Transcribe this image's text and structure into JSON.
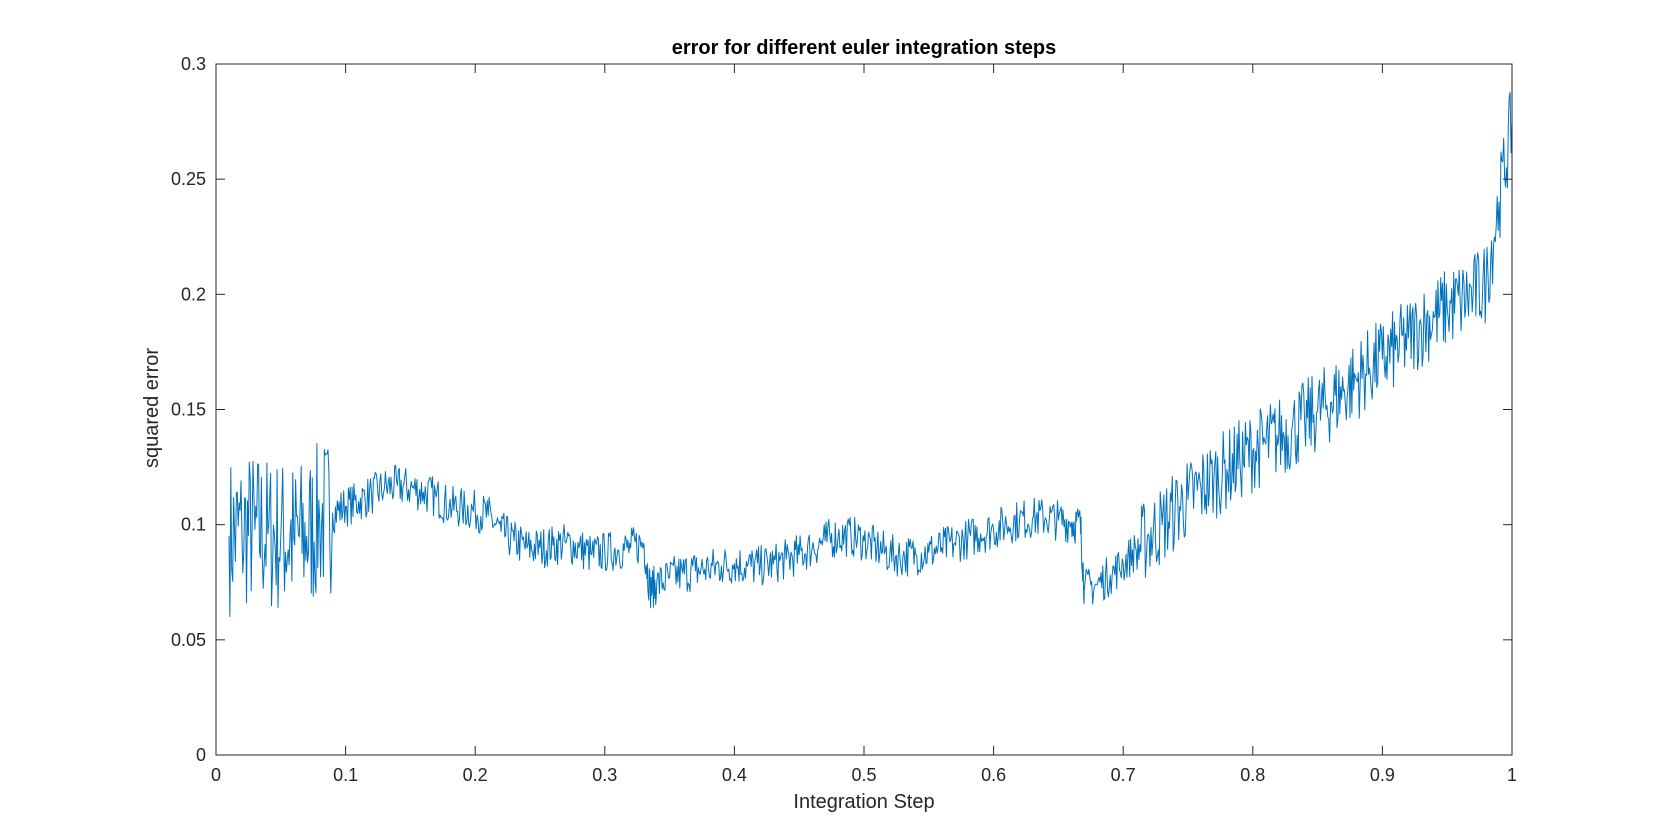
{
  "chart_data": {
    "type": "line",
    "title": "error for different euler integration steps",
    "xlabel": "Integration Step",
    "ylabel": "squared error",
    "xlim": [
      0,
      1
    ],
    "ylim": [
      0,
      0.3
    ],
    "x_ticks": [
      0,
      0.1,
      0.2,
      0.3,
      0.4,
      0.5,
      0.6,
      0.7,
      0.8,
      0.9,
      1
    ],
    "x_tick_labels": [
      "0",
      "0.1",
      "0.2",
      "0.3",
      "0.4",
      "0.5",
      "0.6",
      "0.7",
      "0.8",
      "0.9",
      "1"
    ],
    "y_ticks": [
      0,
      0.05,
      0.1,
      0.15,
      0.2,
      0.25,
      0.3
    ],
    "y_tick_labels": [
      "0",
      "0.05",
      "0.1",
      "0.15",
      "0.2",
      "0.25",
      "0.3"
    ],
    "grid": false,
    "line_color": "#0072BD",
    "axis_color": "#262626",
    "series": [
      {
        "x": [
          0.01,
          0.02,
          0.03,
          0.04,
          0.05,
          0.06,
          0.07,
          0.08,
          0.09,
          0.1,
          0.11,
          0.12,
          0.13,
          0.14,
          0.15,
          0.16,
          0.17,
          0.18,
          0.19,
          0.2,
          0.21,
          0.22,
          0.23,
          0.24,
          0.25,
          0.26,
          0.27,
          0.28,
          0.29,
          0.3,
          0.31,
          0.32,
          0.33,
          0.335,
          0.34,
          0.35,
          0.36,
          0.37,
          0.38,
          0.39,
          0.4,
          0.41,
          0.42,
          0.43,
          0.44,
          0.45,
          0.46,
          0.47,
          0.48,
          0.49,
          0.5,
          0.51,
          0.52,
          0.53,
          0.54,
          0.55,
          0.56,
          0.57,
          0.58,
          0.59,
          0.6,
          0.61,
          0.62,
          0.63,
          0.64,
          0.65,
          0.66,
          0.667,
          0.67,
          0.68,
          0.69,
          0.7,
          0.71,
          0.72,
          0.73,
          0.74,
          0.75,
          0.76,
          0.77,
          0.78,
          0.79,
          0.8,
          0.81,
          0.82,
          0.83,
          0.84,
          0.85,
          0.86,
          0.87,
          0.88,
          0.89,
          0.9,
          0.91,
          0.92,
          0.93,
          0.94,
          0.95,
          0.96,
          0.97,
          0.98,
          0.99,
          1.0
        ],
        "y": [
          0.095,
          0.097,
          0.098,
          0.096,
          0.095,
          0.094,
          0.095,
          0.102,
          0.105,
          0.108,
          0.11,
          0.113,
          0.116,
          0.117,
          0.116,
          0.114,
          0.112,
          0.108,
          0.107,
          0.106,
          0.104,
          0.097,
          0.093,
          0.09,
          0.09,
          0.091,
          0.092,
          0.09,
          0.087,
          0.088,
          0.089,
          0.09,
          0.092,
          0.072,
          0.074,
          0.077,
          0.079,
          0.08,
          0.081,
          0.082,
          0.083,
          0.082,
          0.082,
          0.083,
          0.085,
          0.087,
          0.09,
          0.093,
          0.095,
          0.095,
          0.093,
          0.09,
          0.087,
          0.086,
          0.087,
          0.088,
          0.09,
          0.092,
          0.094,
          0.096,
          0.098,
          0.1,
          0.102,
          0.103,
          0.103,
          0.102,
          0.101,
          0.1,
          0.072,
          0.074,
          0.078,
          0.083,
          0.089,
          0.095,
          0.1,
          0.106,
          0.111,
          0.116,
          0.12,
          0.124,
          0.128,
          0.132,
          0.135,
          0.138,
          0.141,
          0.145,
          0.149,
          0.153,
          0.158,
          0.163,
          0.168,
          0.172,
          0.176,
          0.181,
          0.186,
          0.19,
          0.194,
          0.197,
          0.2,
          0.205,
          0.24,
          0.275
        ]
      }
    ]
  }
}
